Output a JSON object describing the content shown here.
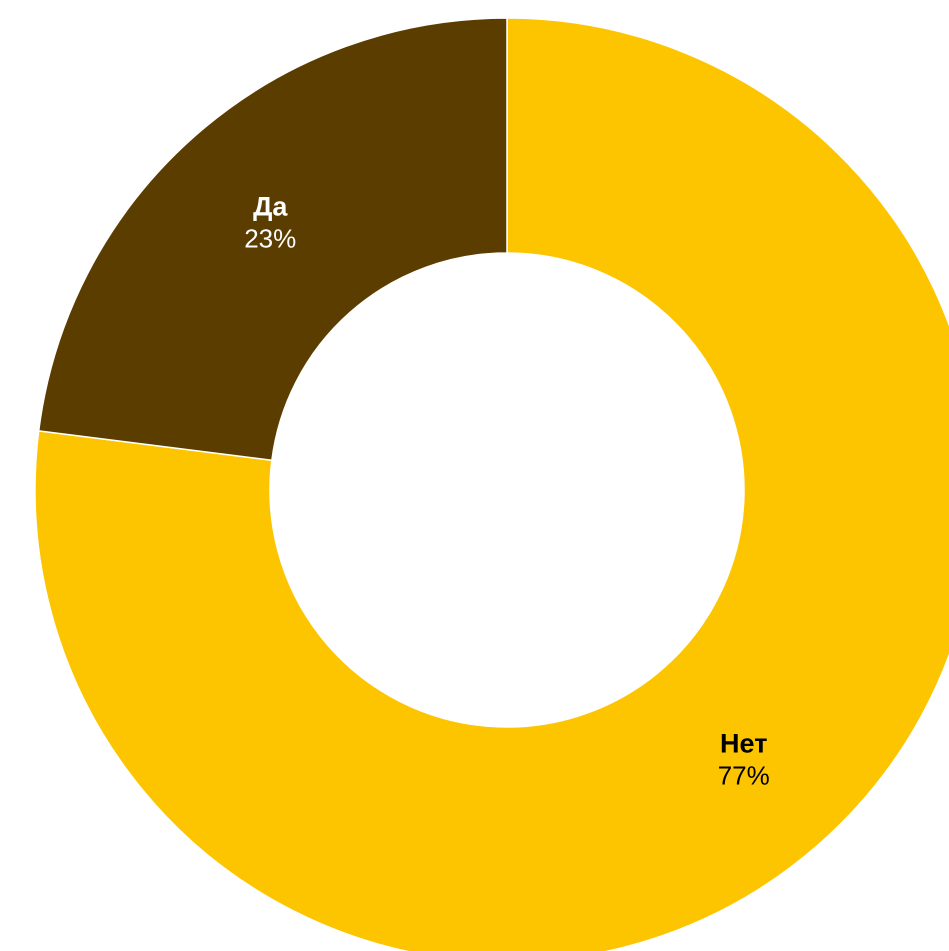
{
  "chart_data": {
    "type": "pie",
    "variant": "donut",
    "title": "",
    "slices": [
      {
        "label": "Нет",
        "value": 77,
        "value_label": "77%",
        "color": "#FDC500",
        "text_color": "#000000"
      },
      {
        "label": "Да",
        "value": 23,
        "value_label": "23%",
        "color": "#5C3D00",
        "text_color": "#FFFFFF"
      }
    ],
    "start_angle_deg": 0,
    "direction": "clockwise",
    "separator_color": "#FFFFFF"
  }
}
